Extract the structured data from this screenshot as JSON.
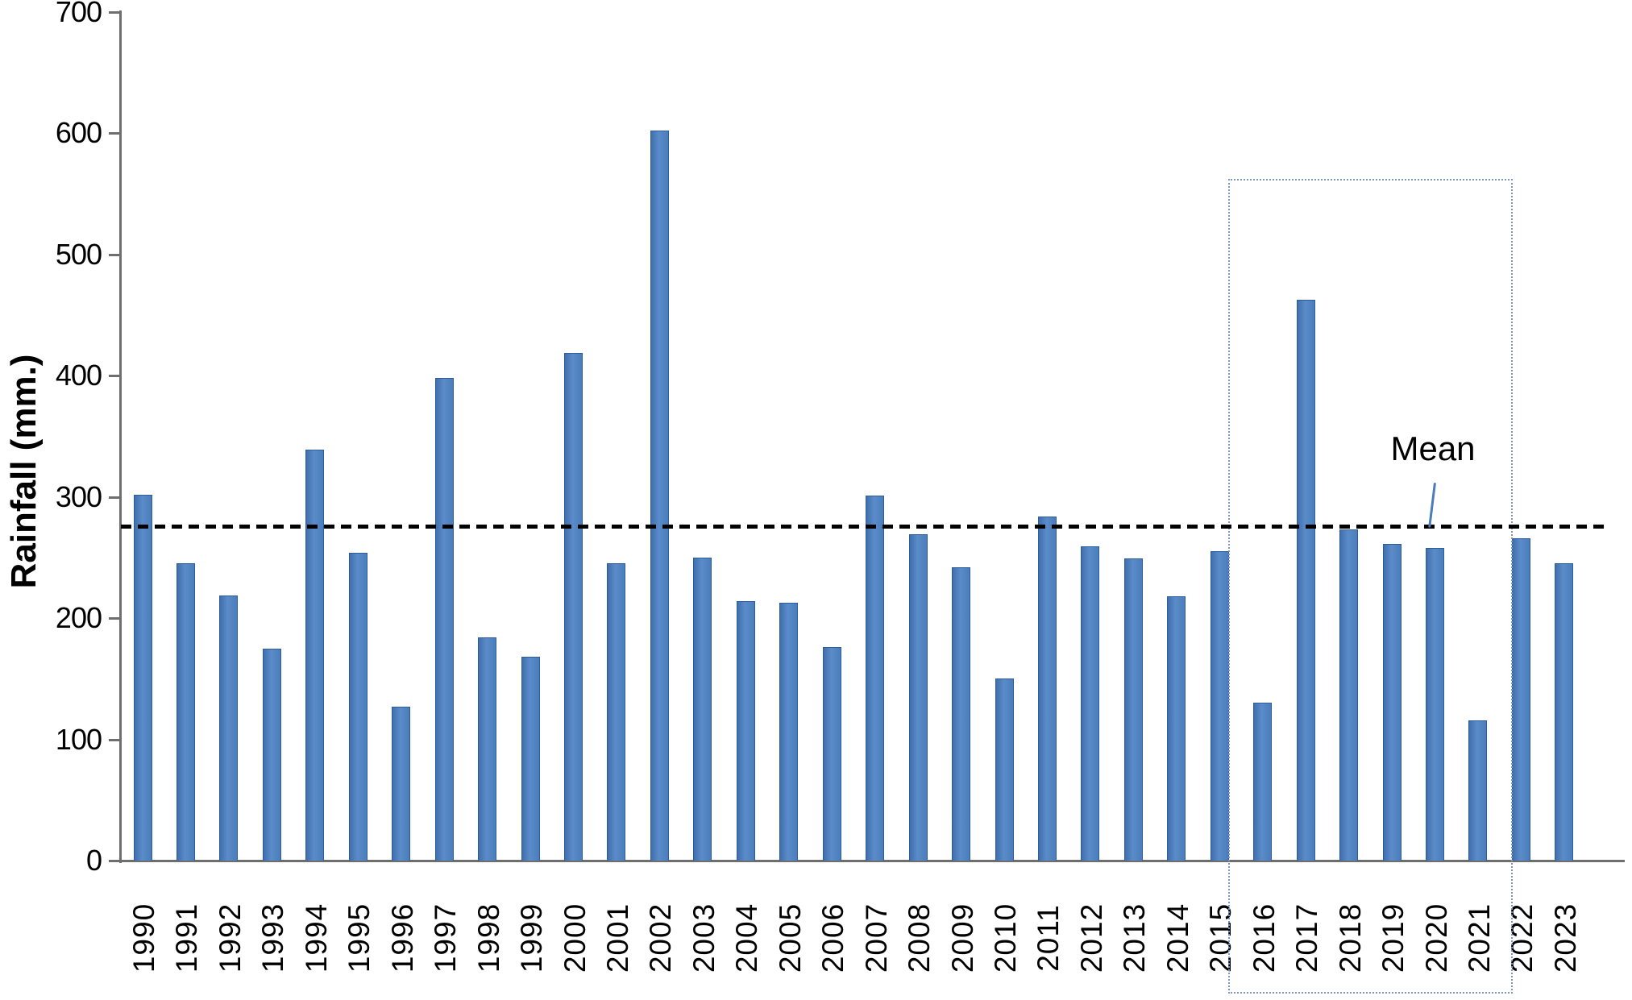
{
  "chart_data": {
    "type": "bar",
    "title": "",
    "xlabel": "",
    "ylabel": "Rainfall (mm.)",
    "ylim": [
      0,
      700
    ],
    "ytick_step": 100,
    "yticks": [
      0,
      100,
      200,
      300,
      400,
      500,
      600,
      700
    ],
    "grid": false,
    "legend_position": "none",
    "categories": [
      "1990",
      "1991",
      "1992",
      "1993",
      "1994",
      "1995",
      "1996",
      "1997",
      "1998",
      "1999",
      "2000",
      "2001",
      "2002",
      "2003",
      "2004",
      "2005",
      "2006",
      "2007",
      "2008",
      "2009",
      "2010",
      "2011",
      "2012",
      "2013",
      "2014",
      "2015",
      "2016",
      "2017",
      "2018",
      "2019",
      "2020",
      "2021",
      "2022",
      "2023"
    ],
    "values": [
      302,
      245,
      219,
      175,
      339,
      254,
      127,
      398,
      184,
      168,
      419,
      245,
      602,
      250,
      214,
      213,
      176,
      301,
      269,
      242,
      150,
      284,
      259,
      249,
      218,
      255,
      130,
      463,
      273,
      261,
      258,
      116,
      266,
      245
    ],
    "mean_line": {
      "label": "Mean",
      "value": 276,
      "style": "dashed",
      "color": "#000000"
    },
    "highlight_box": {
      "start_year": "2016",
      "end_year": "2021",
      "border_color": "#7d95bf"
    },
    "colors": {
      "bar_fill": "#4a7dbc",
      "bar_fill_light": "#5b8cc9",
      "bar_fill_dark": "#3f6fad",
      "bar_border": "#2e5d9e",
      "axis": "#6e6e6e",
      "text": "#000000",
      "leader_line": "#4a7dbc"
    }
  }
}
